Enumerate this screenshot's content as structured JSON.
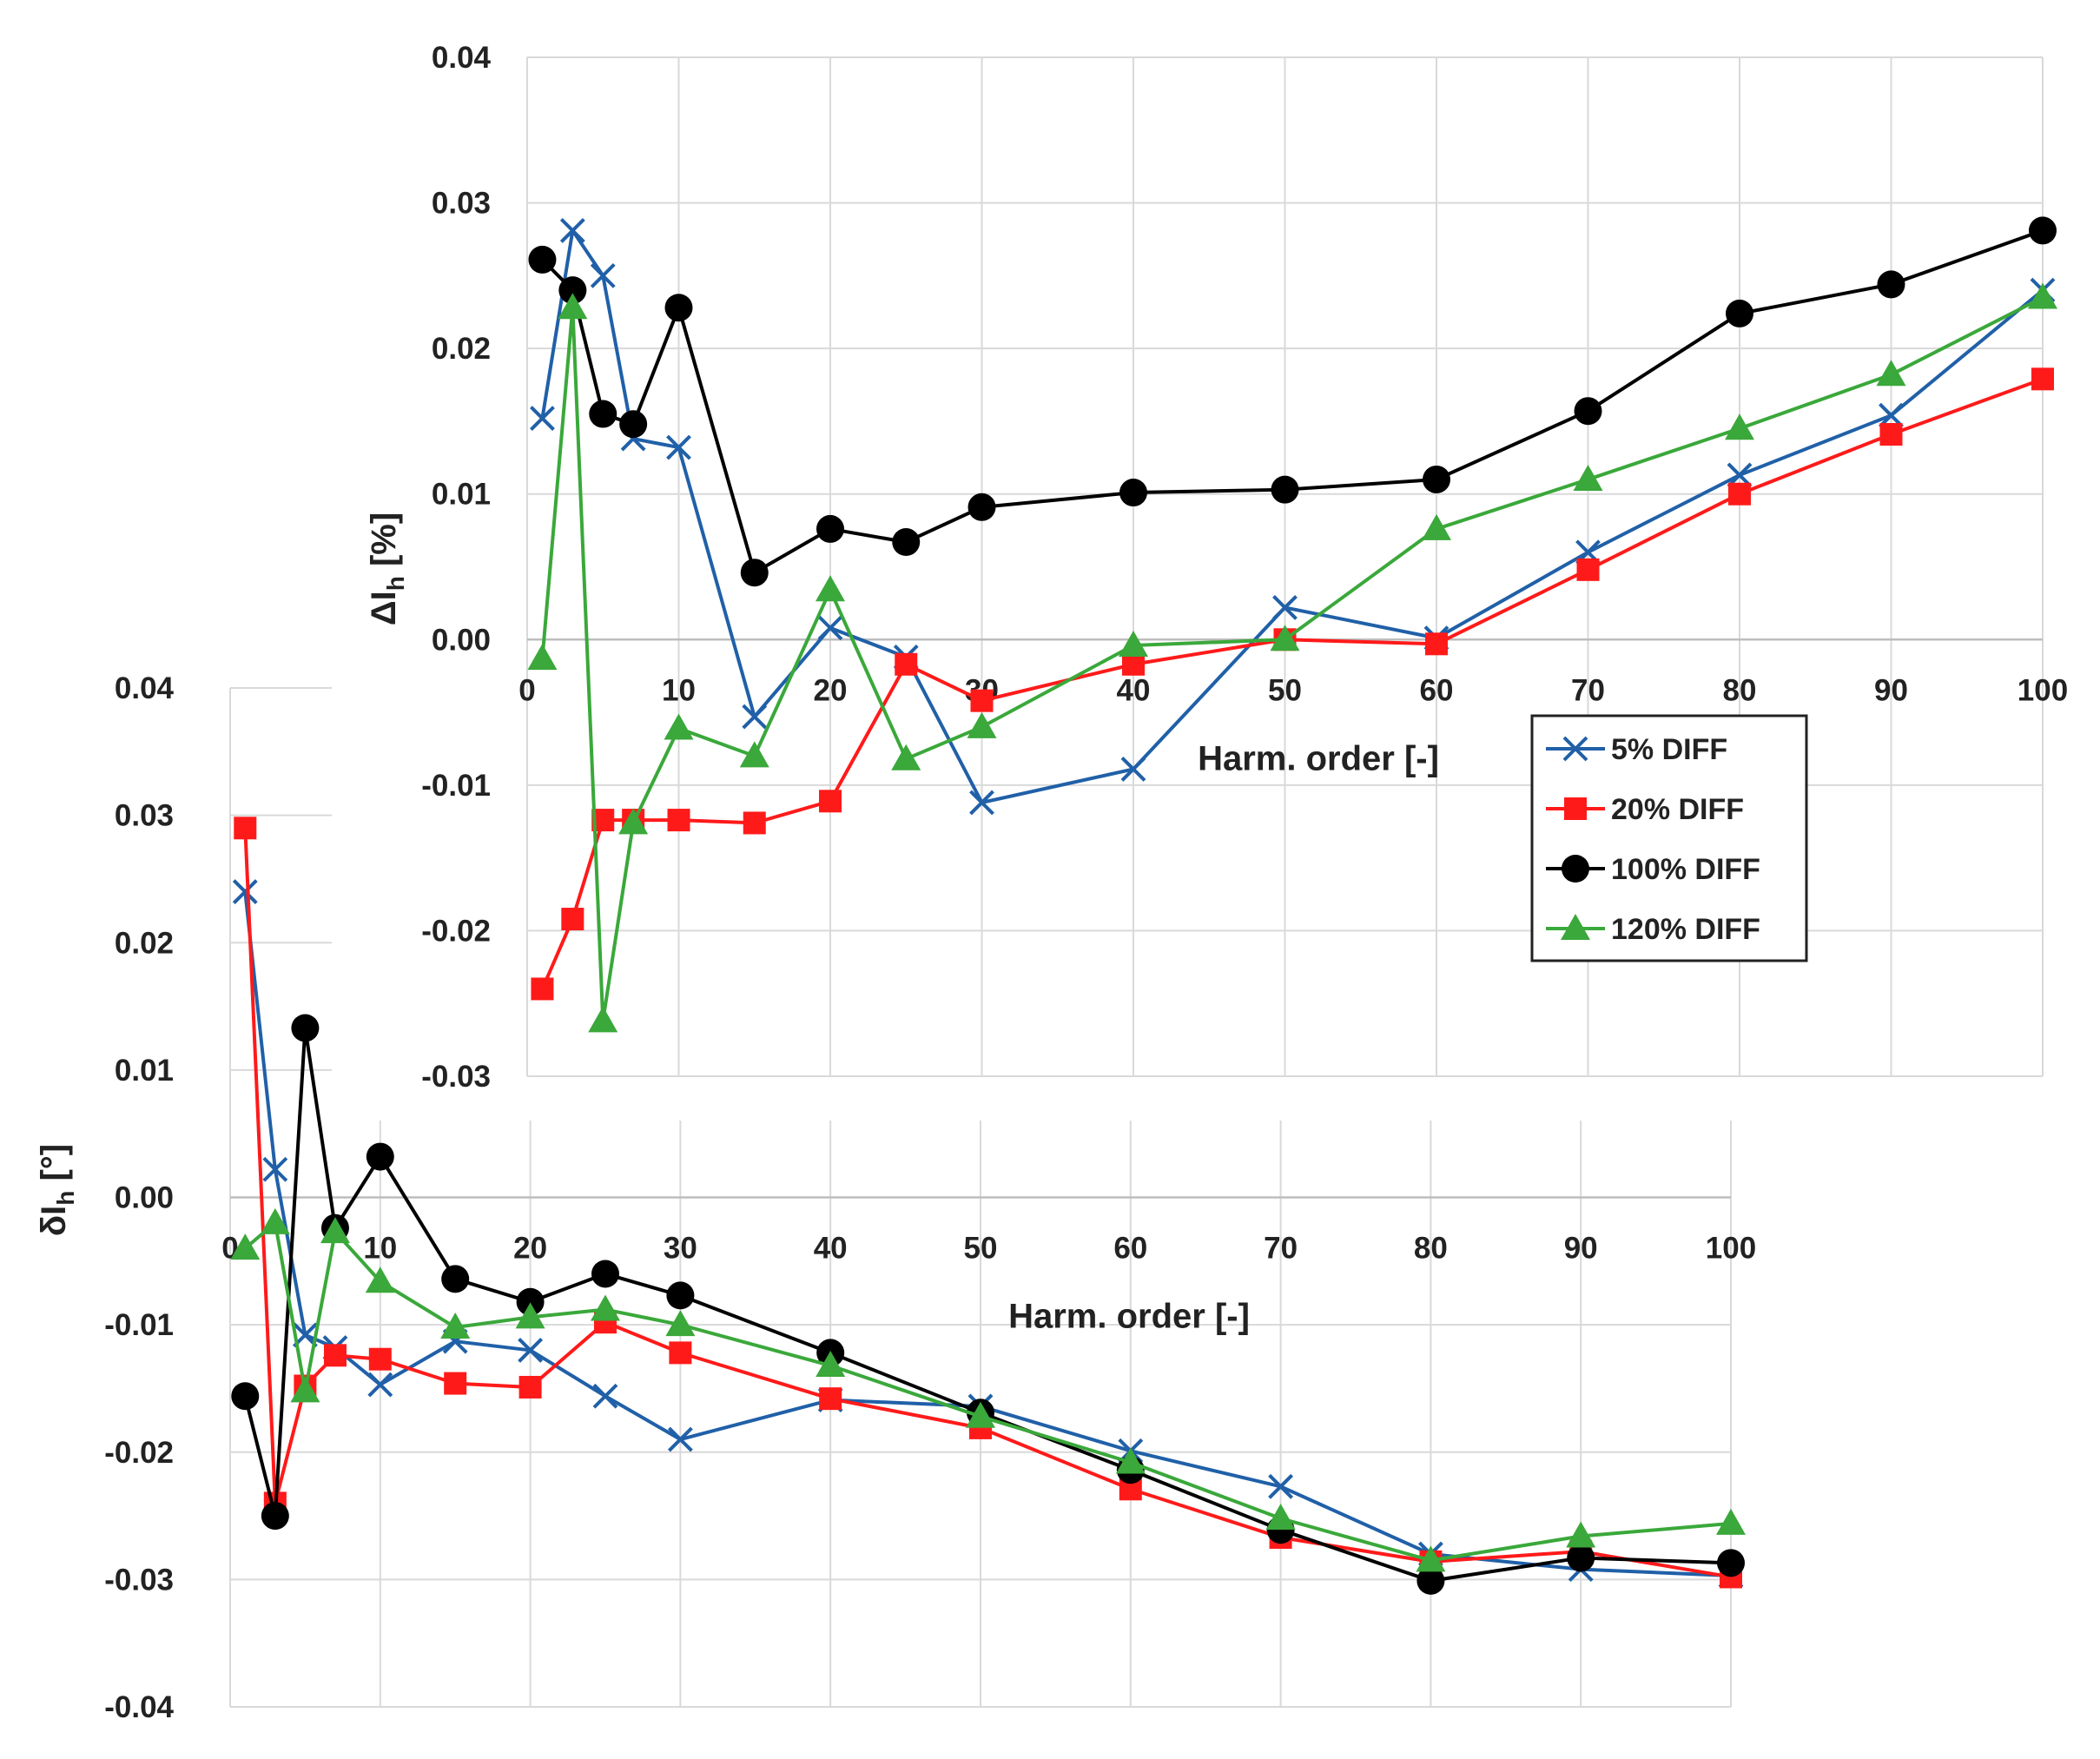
{
  "chart_data": [
    {
      "type": "line",
      "name": "top-chart",
      "title": "",
      "xlabel": "Harm. order [-]",
      "ylabel": "ΔI",
      "ylabel_sub": "h",
      "ylabel_unit": " [%]",
      "xlim": [
        0,
        100
      ],
      "ylim": [
        -0.03,
        0.04
      ],
      "x_ticks": [
        0,
        10,
        20,
        30,
        40,
        50,
        60,
        70,
        80,
        90,
        100
      ],
      "y_ticks": [
        -0.03,
        -0.02,
        -0.01,
        0.0,
        0.01,
        0.02,
        0.03,
        0.04
      ],
      "y_tick_labels": [
        "-0.03",
        "-0.02",
        "-0.01",
        "0.00",
        "0.01",
        "0.02",
        "0.03",
        "0.04"
      ],
      "grid": true,
      "legend_position": "center-right",
      "series": [
        {
          "name": "5% DIFF",
          "color": "#2060a8",
          "marker": "x",
          "x": [
            1,
            3,
            5,
            7,
            10,
            15,
            20,
            25,
            30,
            40,
            50,
            60,
            70,
            80,
            90,
            100
          ],
          "y": [
            0.0152,
            0.0281,
            0.025,
            0.0138,
            0.0132,
            -0.0053,
            0.0008,
            -0.0012,
            -0.0112,
            -0.0089,
            0.0022,
            0.0001,
            0.006,
            0.0113,
            0.0154,
            0.024
          ]
        },
        {
          "name": "20% DIFF",
          "color": "#ff1a1a",
          "marker": "square",
          "x": [
            1,
            3,
            5,
            7,
            10,
            15,
            20,
            25,
            30,
            40,
            50,
            60,
            70,
            80,
            90,
            100
          ],
          "y": [
            -0.024,
            -0.0192,
            -0.0124,
            -0.0124,
            -0.0124,
            -0.0126,
            -0.0111,
            -0.0017,
            -0.0042,
            -0.0017,
            0.0,
            -0.0003,
            0.0048,
            0.01,
            0.0141,
            0.0179
          ]
        },
        {
          "name": "100% DIFF",
          "color": "#000000",
          "marker": "circle",
          "x": [
            1,
            3,
            5,
            7,
            10,
            15,
            20,
            25,
            30,
            40,
            50,
            60,
            70,
            80,
            90,
            100
          ],
          "y": [
            0.0261,
            0.024,
            0.0155,
            0.0148,
            0.0228,
            0.0046,
            0.0076,
            0.0067,
            0.0091,
            0.0101,
            0.0103,
            0.011,
            0.0157,
            0.0224,
            0.0244,
            0.0281
          ]
        },
        {
          "name": "120% DIFF",
          "color": "#3aa83a",
          "marker": "triangle",
          "x": [
            1,
            3,
            5,
            7,
            10,
            15,
            20,
            25,
            30,
            40,
            50,
            60,
            70,
            80,
            90,
            100
          ],
          "y": [
            -0.0013,
            0.0228,
            -0.0262,
            -0.0126,
            -0.0061,
            -0.008,
            0.0034,
            -0.0082,
            -0.006,
            -0.0004,
            0.0,
            0.0076,
            0.011,
            0.0145,
            0.0182,
            0.0235
          ]
        }
      ]
    },
    {
      "type": "line",
      "name": "bottom-chart",
      "title": "",
      "xlabel": "Harm. order [-]",
      "ylabel": "δI",
      "ylabel_sub": "h",
      "ylabel_unit": " [°]",
      "xlim": [
        0,
        100
      ],
      "ylim": [
        -0.04,
        0.04
      ],
      "x_ticks": [
        0,
        10,
        20,
        30,
        40,
        50,
        60,
        70,
        80,
        90,
        100
      ],
      "y_ticks": [
        -0.04,
        -0.03,
        -0.02,
        -0.01,
        0.0,
        0.01,
        0.02,
        0.03,
        0.04
      ],
      "y_tick_labels": [
        "-0.04",
        "-0.03",
        "-0.02",
        "-0.01",
        "0.00",
        "0.01",
        "0.02",
        "0.03",
        "0.04"
      ],
      "grid": true,
      "series": [
        {
          "name": "5% DIFF",
          "color": "#2060a8",
          "marker": "x",
          "x": [
            1,
            3,
            5,
            7,
            10,
            15,
            20,
            25,
            30,
            40,
            50,
            60,
            70,
            80,
            90,
            100
          ],
          "y": [
            0.024,
            0.0022,
            -0.0108,
            -0.0118,
            -0.0147,
            -0.0113,
            -0.012,
            -0.0156,
            -0.019,
            -0.0159,
            -0.0164,
            -0.0199,
            -0.0227,
            -0.028,
            -0.0292,
            -0.0297
          ]
        },
        {
          "name": "20% DIFF",
          "color": "#ff1a1a",
          "marker": "square",
          "x": [
            1,
            3,
            5,
            7,
            10,
            15,
            20,
            25,
            30,
            40,
            50,
            60,
            70,
            80,
            90,
            100
          ],
          "y": [
            0.029,
            -0.024,
            -0.0148,
            -0.0124,
            -0.0127,
            -0.0146,
            -0.0149,
            -0.0098,
            -0.0122,
            -0.0158,
            -0.0181,
            -0.0229,
            -0.0267,
            -0.0286,
            -0.0278,
            -0.0298
          ]
        },
        {
          "name": "100% DIFF",
          "color": "#000000",
          "marker": "circle",
          "x": [
            1,
            3,
            5,
            7,
            10,
            15,
            20,
            25,
            30,
            40,
            50,
            60,
            70,
            80,
            90,
            100
          ],
          "y": [
            -0.0156,
            -0.025,
            0.0133,
            -0.0024,
            0.0032,
            -0.0064,
            -0.0082,
            -0.006,
            -0.0077,
            -0.0122,
            -0.0169,
            -0.0214,
            -0.0261,
            -0.0301,
            -0.0283,
            -0.0287
          ]
        },
        {
          "name": "120% DIFF",
          "color": "#3aa83a",
          "marker": "triangle",
          "x": [
            1,
            3,
            5,
            7,
            10,
            15,
            20,
            25,
            30,
            40,
            50,
            60,
            70,
            80,
            90,
            100
          ],
          "y": [
            -0.004,
            -0.002,
            -0.0152,
            -0.0027,
            -0.0066,
            -0.0102,
            -0.0094,
            -0.0088,
            -0.01,
            -0.0132,
            -0.0172,
            -0.0208,
            -0.0252,
            -0.0285,
            -0.0266,
            -0.0256
          ]
        }
      ]
    }
  ]
}
